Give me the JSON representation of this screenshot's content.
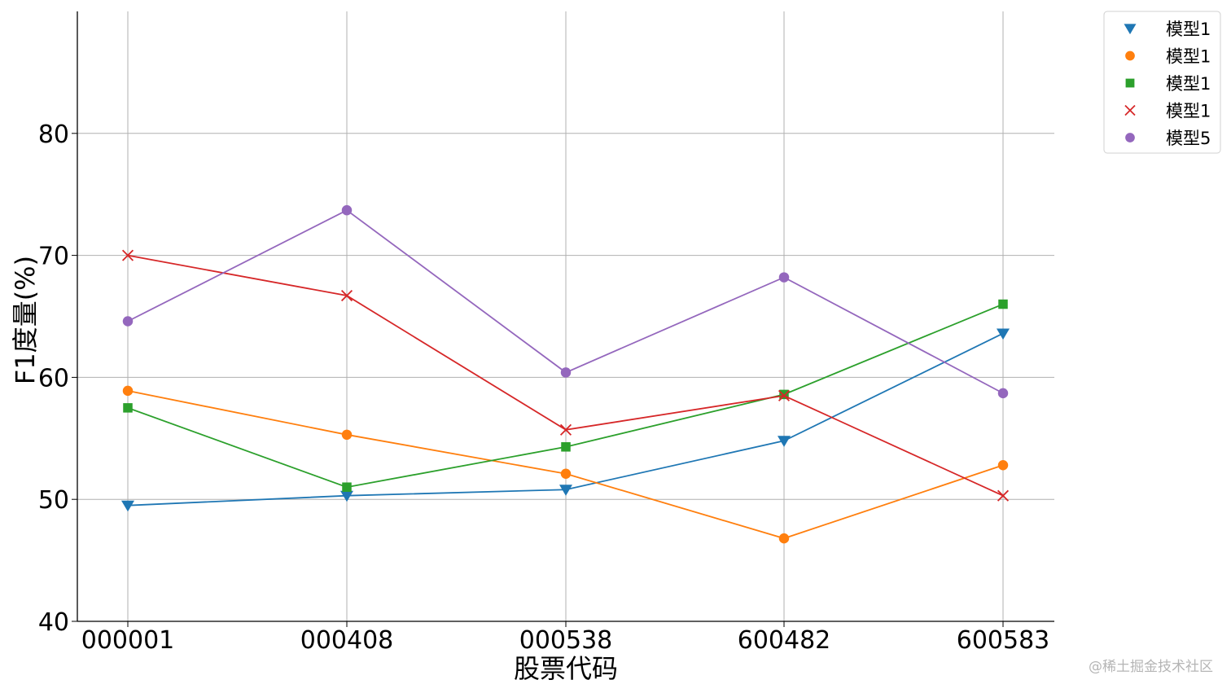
{
  "chart_data": {
    "type": "line",
    "title": "",
    "xlabel": "股票代码",
    "ylabel": "F1度量(%)",
    "categories": [
      "000001",
      "000408",
      "000538",
      "600482",
      "600583"
    ],
    "ylim": [
      40,
      90
    ],
    "yticks": [
      40,
      50,
      60,
      70,
      80
    ],
    "grid": true,
    "legend_position": "outside top-right",
    "series": [
      {
        "name": "模型1",
        "marker": "triangle-down",
        "color": "#1f77b4",
        "values": [
          49.5,
          50.3,
          50.8,
          54.8,
          63.6
        ]
      },
      {
        "name": "模型1",
        "marker": "circle",
        "color": "#ff7f0e",
        "values": [
          58.9,
          55.3,
          52.1,
          46.8,
          52.8
        ]
      },
      {
        "name": "模型1",
        "marker": "square",
        "color": "#2ca02c",
        "values": [
          57.5,
          51.0,
          54.3,
          58.6,
          66.0
        ]
      },
      {
        "name": "模型1",
        "marker": "x",
        "color": "#d62728",
        "values": [
          70.0,
          66.7,
          55.7,
          58.5,
          50.3
        ]
      },
      {
        "name": "模型5",
        "marker": "circle",
        "color": "#9467bd",
        "values": [
          64.6,
          73.7,
          60.4,
          68.2,
          58.7
        ]
      }
    ]
  },
  "watermark": "@稀土掘金技术社区"
}
